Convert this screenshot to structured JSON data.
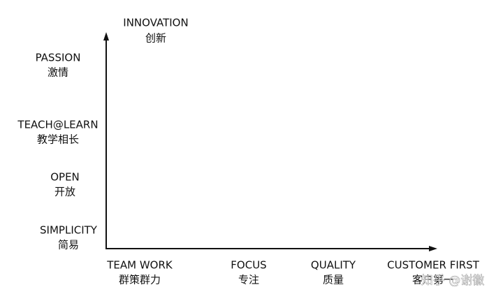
{
  "y_axis": {
    "top_label": {
      "en": "INNOVATION",
      "zh": "创新"
    },
    "labels": [
      {
        "en": "PASSION",
        "zh": "激情"
      },
      {
        "en": "TEACH@LEARN",
        "zh": "教学相长"
      },
      {
        "en": "OPEN",
        "zh": "开放"
      },
      {
        "en": "SIMPLICITY",
        "zh": "简易"
      }
    ]
  },
  "x_axis": {
    "labels": [
      {
        "en": "TEAM WORK",
        "zh": "群策群力"
      },
      {
        "en": "FOCUS",
        "zh": "专注"
      },
      {
        "en": "QUALITY",
        "zh": "质量"
      },
      {
        "en": "CUSTOMER FIRST",
        "zh": "客户第一"
      }
    ]
  },
  "watermark": "知乎 @谢徽"
}
